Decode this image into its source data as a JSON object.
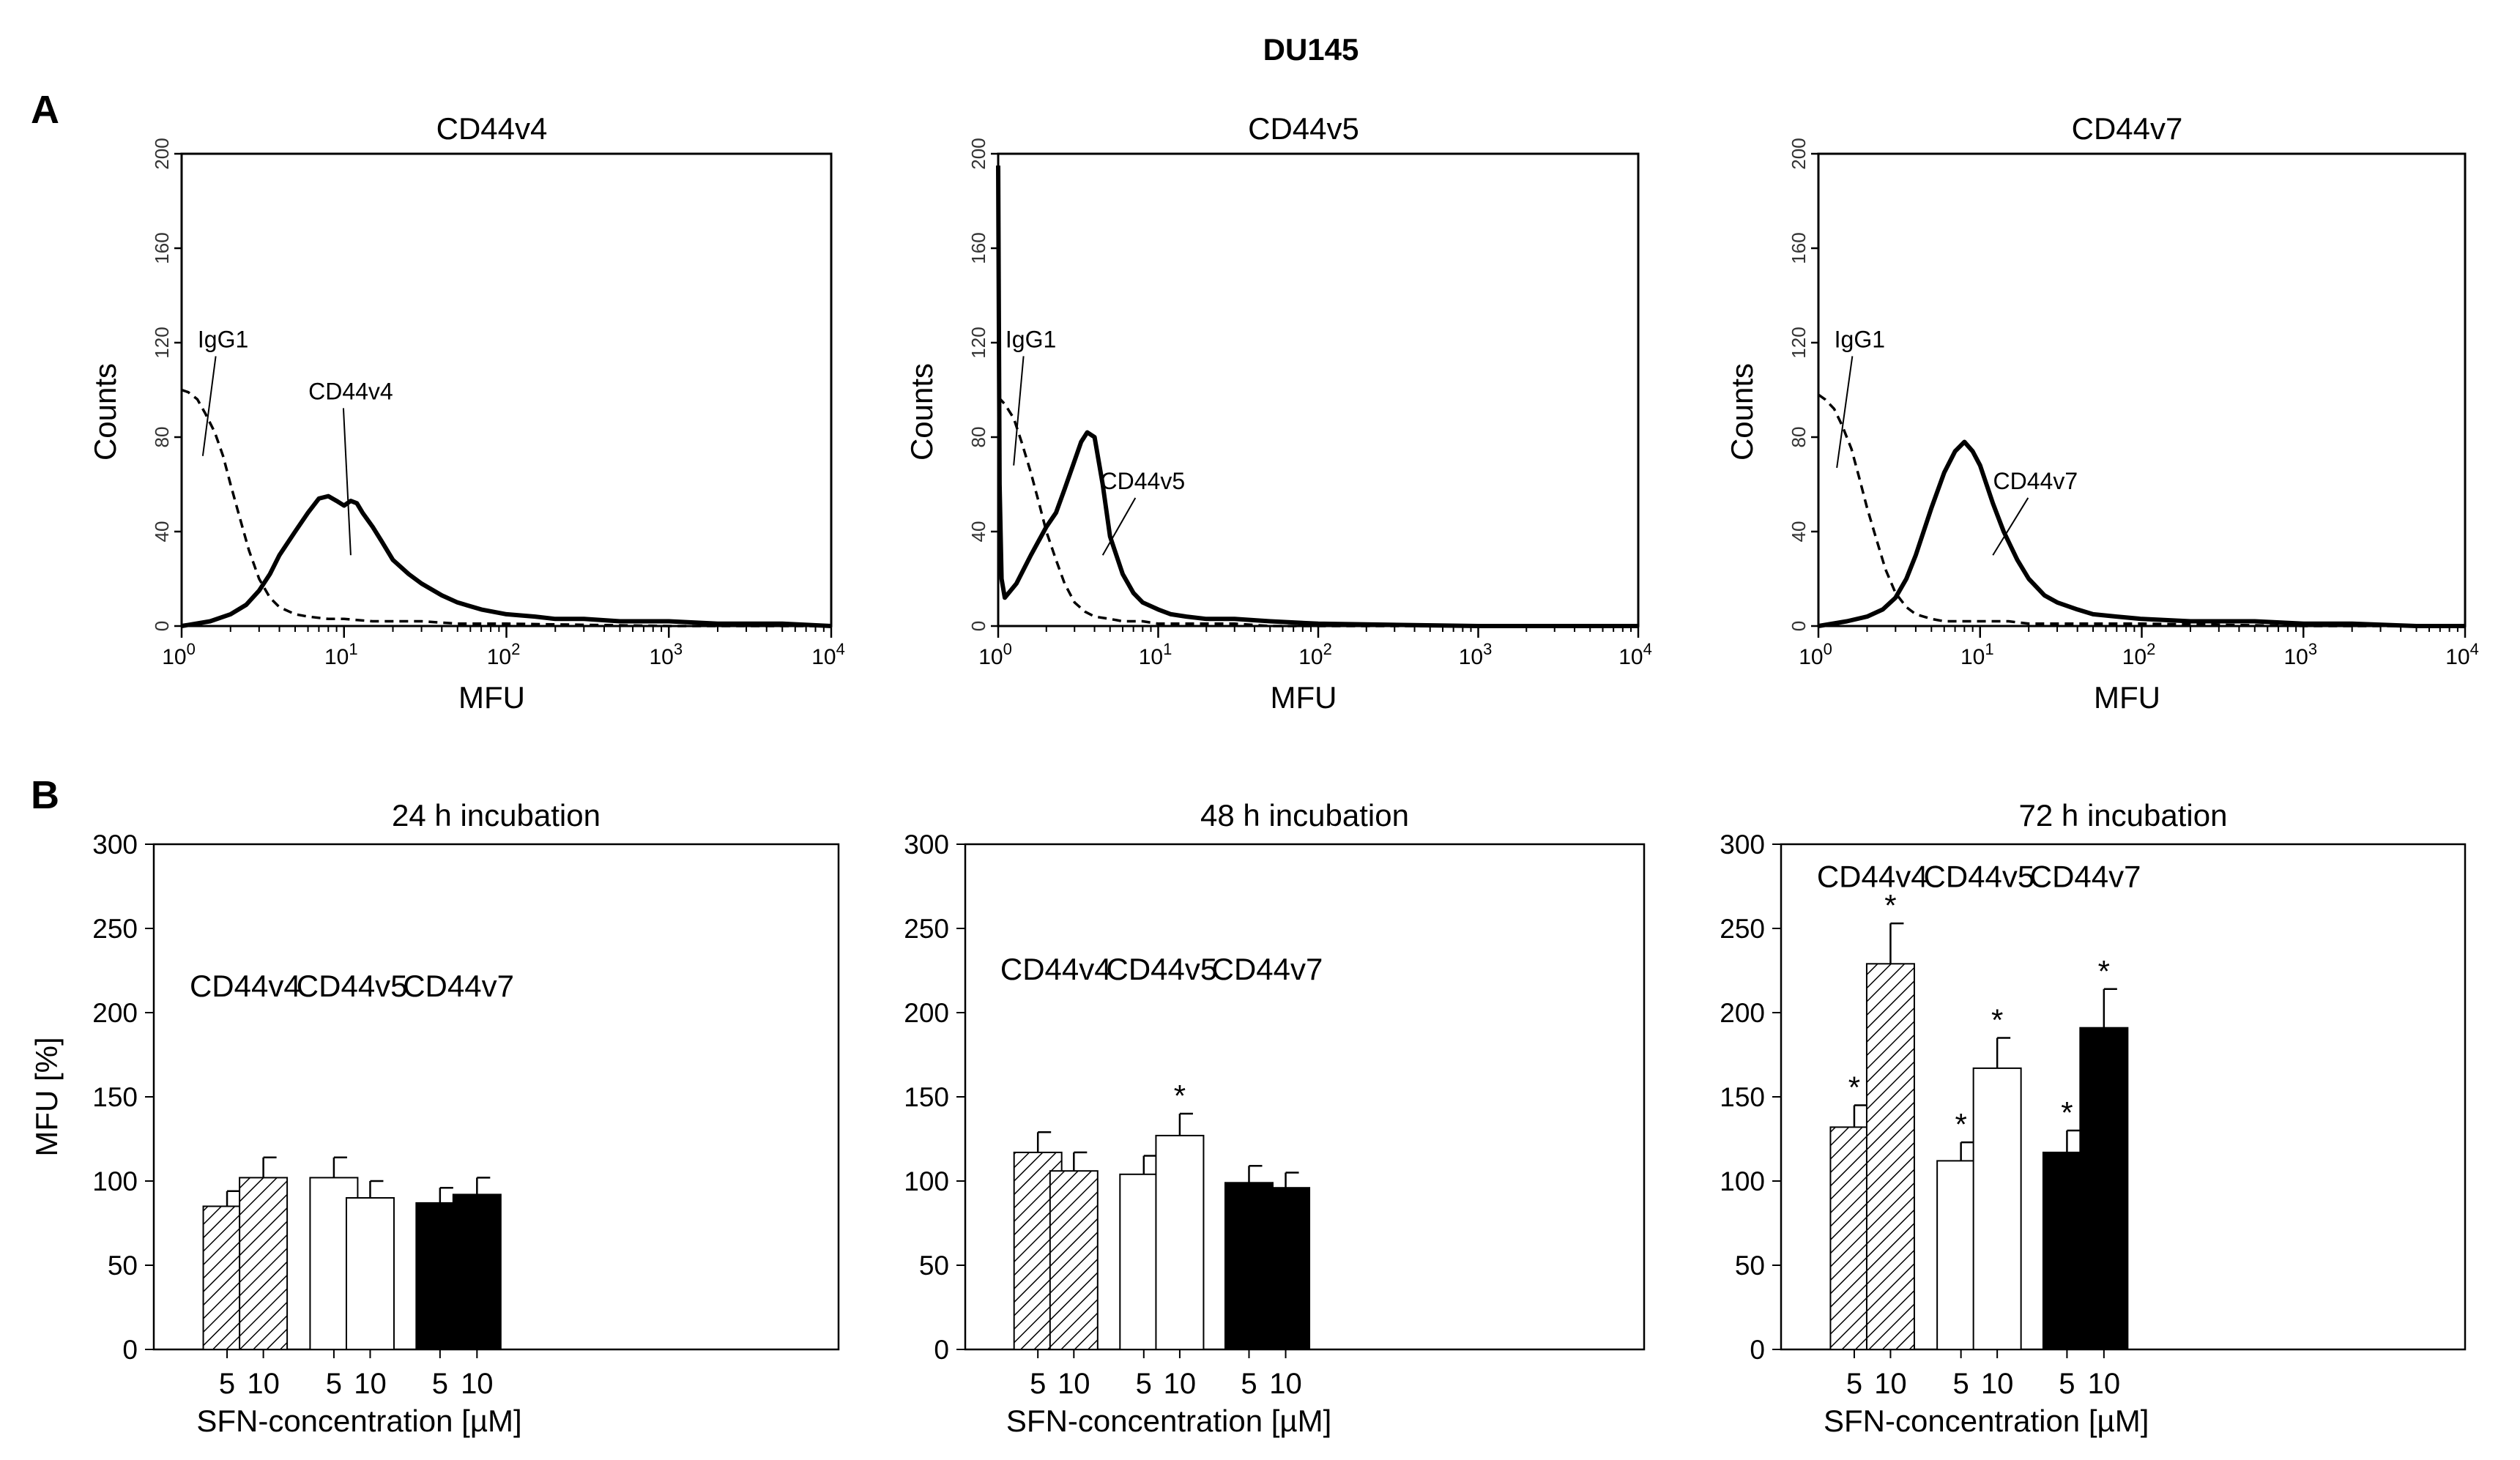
{
  "figure": {
    "title": "DU145",
    "panel_a_label": "A",
    "panel_b_label": "B"
  },
  "chart_data": [
    {
      "type": "line",
      "panel": "A",
      "title": "CD44v4",
      "xlabel": "MFU",
      "ylabel": "Counts",
      "xscale": "log",
      "xlim": [
        1,
        10000
      ],
      "ylim": [
        0,
        200
      ],
      "x_ticks": [
        1,
        10,
        100,
        1000,
        10000
      ],
      "x_tick_labels": [
        {
          "base": "10",
          "exp": "0"
        },
        {
          "base": "10",
          "exp": "1"
        },
        {
          "base": "10",
          "exp": "2"
        },
        {
          "base": "10",
          "exp": "3"
        },
        {
          "base": "10",
          "exp": "4"
        }
      ],
      "y_ticks": [
        0,
        40,
        80,
        120,
        160,
        200
      ],
      "y_tick_labels": [
        "0",
        "40",
        "80",
        "120",
        "160",
        "200"
      ],
      "annotations": [
        {
          "text": "IgG1",
          "at": [
            1.8,
            118
          ],
          "target": [
            1.35,
            72
          ]
        },
        {
          "text": "CD44v4",
          "at": [
            11,
            96
          ],
          "target": [
            11,
            30
          ]
        }
      ],
      "series": [
        {
          "name": "IgG1",
          "style": "dashed",
          "x": [
            1,
            1.1,
            1.25,
            1.4,
            1.6,
            1.8,
            2.0,
            2.3,
            2.6,
            3.0,
            3.5,
            4,
            5,
            6,
            8,
            10,
            15,
            20,
            30,
            50,
            100,
            1000,
            10000
          ],
          "y": [
            100,
            99,
            96,
            90,
            82,
            72,
            60,
            45,
            32,
            20,
            12,
            8,
            5,
            4,
            3,
            3,
            2,
            2,
            2,
            1,
            1,
            0,
            0
          ]
        },
        {
          "name": "CD44v4",
          "style": "solid",
          "x": [
            1,
            1.5,
            2,
            2.5,
            3,
            3.5,
            4,
            5,
            6,
            7,
            8,
            9,
            10,
            11,
            12,
            13,
            15,
            17,
            20,
            25,
            30,
            40,
            50,
            70,
            100,
            150,
            200,
            300,
            500,
            1000,
            2000,
            5000,
            10000
          ],
          "y": [
            0,
            2,
            5,
            9,
            15,
            22,
            30,
            40,
            48,
            54,
            55,
            53,
            51,
            53,
            52,
            48,
            42,
            36,
            28,
            22,
            18,
            13,
            10,
            7,
            5,
            4,
            3,
            3,
            2,
            2,
            1,
            1,
            0
          ]
        }
      ]
    },
    {
      "type": "line",
      "panel": "A",
      "title": "CD44v5",
      "xlabel": "MFU",
      "ylabel": "Counts",
      "xscale": "log",
      "xlim": [
        1,
        10000
      ],
      "ylim": [
        0,
        200
      ],
      "x_ticks": [
        1,
        10,
        100,
        1000,
        10000
      ],
      "x_tick_labels": [
        {
          "base": "10",
          "exp": "0"
        },
        {
          "base": "10",
          "exp": "1"
        },
        {
          "base": "10",
          "exp": "2"
        },
        {
          "base": "10",
          "exp": "3"
        },
        {
          "base": "10",
          "exp": "4"
        }
      ],
      "y_ticks": [
        0,
        40,
        80,
        120,
        160,
        200
      ],
      "y_tick_labels": [
        "0",
        "40",
        "80",
        "120",
        "160",
        "200"
      ],
      "annotations": [
        {
          "text": "IgG1",
          "at": [
            1.6,
            118
          ],
          "target": [
            1.25,
            68
          ]
        },
        {
          "text": "CD44v5",
          "at": [
            8,
            58
          ],
          "target": [
            4.5,
            30
          ]
        }
      ],
      "series": [
        {
          "name": "IgG1",
          "style": "dashed",
          "x": [
            1,
            1.1,
            1.25,
            1.4,
            1.6,
            1.8,
            2.0,
            2.3,
            2.6,
            3.0,
            3.5,
            4,
            5,
            6,
            8,
            10,
            15,
            20,
            30,
            50,
            100,
            1000,
            10000
          ],
          "y": [
            97,
            94,
            88,
            78,
            65,
            52,
            40,
            28,
            18,
            10,
            6,
            4,
            3,
            2,
            2,
            1,
            1,
            1,
            1,
            0,
            0,
            0,
            0
          ]
        },
        {
          "name": "CD44v5",
          "style": "solid",
          "x": [
            1,
            1.02,
            1.05,
            1.1,
            1.3,
            1.6,
            2,
            2.3,
            2.6,
            3,
            3.3,
            3.6,
            4,
            4.5,
            5,
            6,
            7,
            8,
            10,
            12,
            15,
            20,
            30,
            50,
            100,
            1000,
            10000
          ],
          "y": [
            195,
            60,
            20,
            12,
            18,
            30,
            42,
            48,
            58,
            70,
            78,
            82,
            80,
            60,
            38,
            22,
            14,
            10,
            7,
            5,
            4,
            3,
            3,
            2,
            1,
            0,
            0
          ]
        }
      ]
    },
    {
      "type": "line",
      "panel": "A",
      "title": "CD44v7",
      "xlabel": "MFU",
      "ylabel": "Counts",
      "xscale": "log",
      "xlim": [
        1,
        10000
      ],
      "ylim": [
        0,
        200
      ],
      "x_ticks": [
        1,
        10,
        100,
        1000,
        10000
      ],
      "x_tick_labels": [
        {
          "base": "10",
          "exp": "0"
        },
        {
          "base": "10",
          "exp": "1"
        },
        {
          "base": "10",
          "exp": "2"
        },
        {
          "base": "10",
          "exp": "3"
        },
        {
          "base": "10",
          "exp": "4"
        }
      ],
      "y_ticks": [
        0,
        40,
        80,
        120,
        160,
        200
      ],
      "y_tick_labels": [
        "0",
        "40",
        "80",
        "120",
        "160",
        "200"
      ],
      "annotations": [
        {
          "text": "IgG1",
          "at": [
            1.8,
            118
          ],
          "target": [
            1.3,
            67
          ]
        },
        {
          "text": "CD44v7",
          "at": [
            22,
            58
          ],
          "target": [
            12,
            30
          ]
        }
      ],
      "series": [
        {
          "name": "IgG1",
          "style": "dashed",
          "x": [
            1,
            1.1,
            1.25,
            1.4,
            1.6,
            1.8,
            2.0,
            2.3,
            2.6,
            3.0,
            3.5,
            4,
            5,
            6,
            8,
            10,
            15,
            20,
            30,
            50,
            100,
            1000,
            10000
          ],
          "y": [
            98,
            96,
            92,
            85,
            75,
            62,
            50,
            36,
            24,
            14,
            8,
            5,
            3,
            2,
            2,
            2,
            2,
            1,
            1,
            1,
            1,
            0,
            0
          ]
        },
        {
          "name": "CD44v7",
          "style": "solid",
          "x": [
            1,
            1.5,
            2,
            2.5,
            3,
            3.5,
            4,
            5,
            6,
            7,
            8,
            9,
            10,
            12,
            14,
            17,
            20,
            25,
            30,
            40,
            50,
            70,
            100,
            200,
            500,
            1000,
            2000,
            5000,
            10000
          ],
          "y": [
            0,
            2,
            4,
            7,
            12,
            20,
            30,
            50,
            65,
            74,
            78,
            74,
            68,
            52,
            40,
            28,
            20,
            13,
            10,
            7,
            5,
            4,
            3,
            2,
            2,
            1,
            1,
            0,
            0
          ]
        }
      ]
    },
    {
      "type": "bar",
      "panel": "B",
      "title": "24 h incubation",
      "xlabel": "SFN-concentration [µM]",
      "ylabel": "MFU [%]",
      "ylim": [
        0,
        300
      ],
      "y_ticks": [
        0,
        50,
        100,
        150,
        200,
        250,
        300
      ],
      "y_tick_labels": [
        "0",
        "50",
        "100",
        "150",
        "200",
        "250",
        "300"
      ],
      "group_label_level": 216,
      "groups": [
        {
          "name": "CD44v4",
          "fill": "hatched",
          "bars": [
            {
              "concentration": "5",
              "value": 85,
              "error": 9,
              "significant": false
            },
            {
              "concentration": "10",
              "value": 102,
              "error": 12,
              "significant": false
            }
          ]
        },
        {
          "name": "CD44v5",
          "fill": "white",
          "bars": [
            {
              "concentration": "5",
              "value": 102,
              "error": 12,
              "significant": false
            },
            {
              "concentration": "10",
              "value": 90,
              "error": 10,
              "significant": false
            }
          ]
        },
        {
          "name": "CD44v7",
          "fill": "black",
          "bars": [
            {
              "concentration": "5",
              "value": 87,
              "error": 9,
              "significant": false
            },
            {
              "concentration": "10",
              "value": 92,
              "error": 10,
              "significant": false
            }
          ]
        }
      ]
    },
    {
      "type": "bar",
      "panel": "B",
      "title": "48 h incubation",
      "xlabel": "SFN-concentration [µM]",
      "ylabel": "",
      "ylim": [
        0,
        300
      ],
      "y_ticks": [
        0,
        50,
        100,
        150,
        200,
        250,
        300
      ],
      "y_tick_labels": [
        "0",
        "50",
        "100",
        "150",
        "200",
        "250",
        "300"
      ],
      "group_label_level": 226,
      "groups": [
        {
          "name": "CD44v4",
          "fill": "hatched",
          "bars": [
            {
              "concentration": "5",
              "value": 117,
              "error": 12,
              "significant": false
            },
            {
              "concentration": "10",
              "value": 106,
              "error": 11,
              "significant": false
            }
          ]
        },
        {
          "name": "CD44v5",
          "fill": "white",
          "bars": [
            {
              "concentration": "5",
              "value": 104,
              "error": 11,
              "significant": false
            },
            {
              "concentration": "10",
              "value": 127,
              "error": 13,
              "significant": true
            }
          ]
        },
        {
          "name": "CD44v7",
          "fill": "black",
          "bars": [
            {
              "concentration": "5",
              "value": 99,
              "error": 10,
              "significant": false
            },
            {
              "concentration": "10",
              "value": 96,
              "error": 9,
              "significant": false
            }
          ]
        }
      ]
    },
    {
      "type": "bar",
      "panel": "B",
      "title": "72 h incubation",
      "xlabel": "SFN-concentration [µM]",
      "ylabel": "",
      "ylim": [
        0,
        300
      ],
      "y_ticks": [
        0,
        50,
        100,
        150,
        200,
        250,
        300
      ],
      "y_tick_labels": [
        "0",
        "50",
        "100",
        "150",
        "200",
        "250",
        "300"
      ],
      "group_label_level": 281,
      "groups": [
        {
          "name": "CD44v4",
          "fill": "hatched",
          "bars": [
            {
              "concentration": "5",
              "value": 132,
              "error": 13,
              "significant": true
            },
            {
              "concentration": "10",
              "value": 229,
              "error": 24,
              "significant": true
            }
          ]
        },
        {
          "name": "CD44v5",
          "fill": "white",
          "bars": [
            {
              "concentration": "5",
              "value": 112,
              "error": 11,
              "significant": true
            },
            {
              "concentration": "10",
              "value": 167,
              "error": 18,
              "significant": true
            }
          ]
        },
        {
          "name": "CD44v7",
          "fill": "black",
          "bars": [
            {
              "concentration": "5",
              "value": 117,
              "error": 13,
              "significant": true
            },
            {
              "concentration": "10",
              "value": 191,
              "error": 23,
              "significant": true
            }
          ]
        }
      ]
    }
  ],
  "significance_marker": "*",
  "colors": {
    "ink": "#000000",
    "background": "#ffffff",
    "grey_text": "#333333"
  }
}
